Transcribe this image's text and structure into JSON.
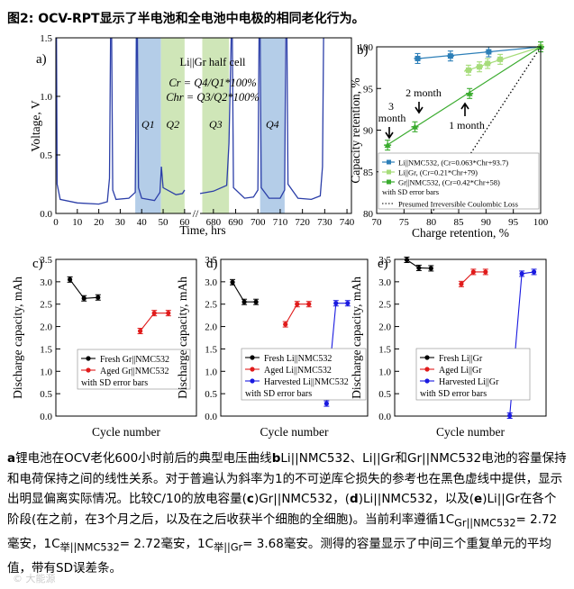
{
  "figure_title": "图2: OCV-RPT显示了半电池和全电池中电极的相同老化行为。",
  "caption": {
    "a_letter": "a",
    "a_text": "锂电池在OCV老化600小时前后的典型电压曲线",
    "b_letter": "b",
    "b_text": "Li||NMC532、Li||Gr和Gr||NMC532电池的容量保持和电荷保持之间的线性关系。对于普遍认为斜率为1的不可逆库仑损失的参考也在黑色虚线中提供，显示出明显偏离实际情况。比较C/10的放电容量(",
    "c_letter": "c",
    "c_text": ")Gr||NMC532，(",
    "d_letter": "d",
    "d_text": ")Li||NMC532，以及(",
    "e_letter": "e",
    "e_text": ")Li||Gr在各个阶段(在之前，在3个月之后，以及在之后收获半个细胞的全细胞)。当前利率遵循1C",
    "sub1": "Gr||NMC532",
    "t1": "= 2.72毫安，1C",
    "sub2": "举||NMC532",
    "t2": "= 2.72毫安，1C",
    "sub3": "举||Gr",
    "t3": "= 3.68毫安。测得的容量显示了中间三个重复单元的平均值，带有SD误差条。"
  },
  "watermark": "© 大能源",
  "chart_data": [
    {
      "panel": "a)",
      "type": "line",
      "cell_label": "Li||Gr half cell",
      "formula1": "Cr = Q4/Q1*100%",
      "formula2": "Chr = Q3/Q2*100%",
      "xlabel": "Time, hrs",
      "ylabel": "Voltage, V",
      "ylim": [
        0.0,
        1.5
      ],
      "yticks": [
        "0.0",
        "0.5",
        "1.0",
        "1.5"
      ],
      "xticks_left": [
        "0",
        "10",
        "20",
        "30",
        "40",
        "50",
        "60"
      ],
      "xticks_right": [
        "680",
        "690",
        "700",
        "710",
        "720",
        "730",
        "740"
      ],
      "axis_break": "//",
      "regions": [
        {
          "name": "Q1",
          "x": [
            37,
            49
          ],
          "color": "#b4cde8"
        },
        {
          "name": "Q2",
          "x": [
            49,
            60
          ],
          "color": "#cfe6b8"
        },
        {
          "name": "Q3",
          "x": [
            675,
            687
          ],
          "color": "#cfe6b8"
        },
        {
          "name": "Q4",
          "x": [
            701,
            712
          ],
          "color": "#b4cde8"
        }
      ],
      "series_color": "#2b3ea8"
    },
    {
      "panel": "b)",
      "type": "scatter",
      "xlabel": "Charge retention, %",
      "ylabel": "Capacity retention, %",
      "xlim": [
        70,
        100
      ],
      "ylim": [
        80,
        100
      ],
      "xticks": [
        "70",
        "75",
        "80",
        "85",
        "90",
        "95",
        "100"
      ],
      "yticks": [
        "80",
        "85",
        "90",
        "95",
        "100"
      ],
      "series": [
        {
          "name": "Li||NMC532, (Cr=0.063*Chr+93.7)",
          "color": "#2d7fb8",
          "marker": "square",
          "fit": [
            0.063,
            93.7
          ],
          "fit_range": [
            77,
            100
          ],
          "x": [
            77.5,
            83.5,
            90.5,
            100
          ],
          "y": [
            98.6,
            98.9,
            99.4,
            100
          ]
        },
        {
          "name": "Li||Gr, (Cr=0.21*Chr+79)",
          "color": "#a6dc7a",
          "marker": "square",
          "fit": [
            0.21,
            79
          ],
          "fit_range": [
            86,
            100
          ],
          "x": [
            86.8,
            88.8,
            90.3,
            92.6,
            100
          ],
          "y": [
            97.2,
            97.6,
            98.0,
            98.5,
            100
          ]
        },
        {
          "name": "Gr||NMC532, (Cr=0.42*Chr+58)",
          "color": "#3aab2e",
          "marker": "triangle",
          "fit": [
            0.42,
            58
          ],
          "fit_range": [
            72,
            100
          ],
          "x": [
            72,
            77,
            87,
            100
          ],
          "y": [
            88.2,
            90.4,
            94.4,
            100
          ]
        }
      ],
      "legend_footer": "with SD error bars",
      "reference_line": {
        "name": "Presumed Irreversible Coulombic Loss",
        "x": [
          80,
          100
        ],
        "y": [
          80,
          100
        ]
      },
      "annotations": [
        {
          "text": "3",
          "sub": "month",
          "x": 72,
          "y": 88.2
        },
        {
          "text": "2 month",
          "x": 77,
          "y": 90.4
        },
        {
          "text": "1 month",
          "x": 87,
          "y": 94.4
        }
      ]
    },
    {
      "panel": "c)",
      "type": "line",
      "xlabel": "Cycle number",
      "ylabel": "Discharge capacity, mAh",
      "ylim": [
        0.0,
        3.5
      ],
      "yticks": [
        "0.0",
        "0.5",
        "1.0",
        "1.5",
        "2.0",
        "2.5",
        "3.0",
        "3.5"
      ],
      "series": [
        {
          "name": "Fresh Gr||NMC532",
          "color": "#000000",
          "x": [
            1,
            2,
            3
          ],
          "y": [
            3.05,
            2.63,
            2.65
          ]
        },
        {
          "name": "Aged Gr||NMC532",
          "color": "#e01b1b",
          "x": [
            6,
            7,
            8
          ],
          "y": [
            1.9,
            2.3,
            2.3
          ]
        }
      ],
      "legend_footer": "with SD error bars"
    },
    {
      "panel": "d)",
      "type": "line",
      "xlabel": "Cycle number",
      "ylabel": "Discharge capacity, mAh",
      "ylim": [
        0.0,
        3.5
      ],
      "yticks": [
        "0.0",
        "0.5",
        "1.0",
        "1.5",
        "2.0",
        "2.5",
        "3.0",
        "3.5"
      ],
      "series": [
        {
          "name": "Fresh Li||NMC532",
          "color": "#000000",
          "x": [
            1,
            2,
            3
          ],
          "y": [
            2.99,
            2.55,
            2.55
          ]
        },
        {
          "name": "Aged Li||NMC532",
          "color": "#e01b1b",
          "x": [
            5.5,
            6.5,
            7.5
          ],
          "y": [
            2.05,
            2.5,
            2.5
          ]
        },
        {
          "name": "Harvested Li||NMC532",
          "color": "#1a1ae0",
          "x": [
            9,
            9.8,
            10.8
          ],
          "y": [
            0.28,
            2.52,
            2.52
          ]
        }
      ],
      "legend_footer": "with SD error bars"
    },
    {
      "panel": "e)",
      "type": "line",
      "xlabel": "Cycle number",
      "ylabel": "Discharge capacity, mAh",
      "ylim": [
        0.0,
        3.5
      ],
      "yticks": [
        "0.0",
        "0.5",
        "1.0",
        "1.5",
        "2.0",
        "2.5",
        "3.0",
        "3.5"
      ],
      "series": [
        {
          "name": "Fresh Li||Gr",
          "color": "#000000",
          "x": [
            1,
            2,
            3
          ],
          "y": [
            3.49,
            3.31,
            3.3
          ]
        },
        {
          "name": "Aged Li||Gr",
          "color": "#e01b1b",
          "x": [
            5.5,
            6.5,
            7.5
          ],
          "y": [
            2.95,
            3.22,
            3.22
          ]
        },
        {
          "name": "Harvested Li||Gr",
          "color": "#1a1ae0",
          "x": [
            9.5,
            10.5,
            11.5
          ],
          "y": [
            0.01,
            3.18,
            3.22
          ]
        }
      ],
      "legend_footer": "with SD error bars"
    }
  ]
}
